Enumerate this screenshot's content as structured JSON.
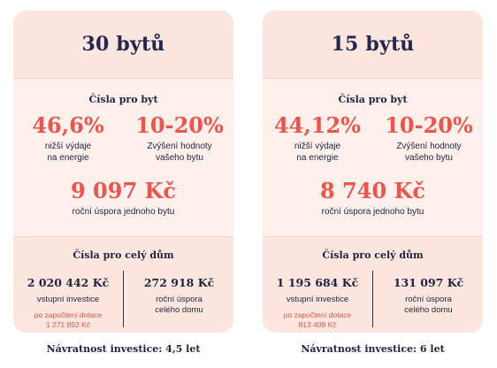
{
  "cards": [
    {
      "title": "30 bytů",
      "per_flat_title": "Čísla pro byt",
      "stat1_value": "46,6%",
      "stat1_caption_line1": "nižší výdaje",
      "stat1_caption_line2": "na energie",
      "stat2_value": "10-20%",
      "stat2_caption_line1": "Zvýšení hodnoty",
      "stat2_caption_line2": "vašeho bytu",
      "saving_value": "9 097 Kč",
      "saving_caption": "roční úspora jednoho bytu",
      "house_title": "Čísla pro celý dům",
      "investment_value": "2 020 442 Kč",
      "investment_caption": "vstupní investice",
      "subsidy_note_line1": "po započtení dotace",
      "subsidy_note_line2": "1 271 892 Kč",
      "house_saving_value": "272 918 Kč",
      "house_saving_caption_line1": "roční úspora",
      "house_saving_caption_line2": "celého domu",
      "payback": "Návratnost investice: 4,5 let"
    },
    {
      "title": "15 bytů",
      "per_flat_title": "Čísla pro byt",
      "stat1_value": "44,12%",
      "stat1_caption_line1": "nižší výdaje",
      "stat1_caption_line2": "na energie",
      "stat2_value": "10-20%",
      "stat2_caption_line1": "Zvýšení hodnoty",
      "stat2_caption_line2": "vašeho bytu",
      "saving_value": "8 740 Kč",
      "saving_caption": "roční úspora jednoho bytu",
      "house_title": "Čísla pro celý dům",
      "investment_value": "1 195 684 Kč",
      "investment_caption": "vstupní investice",
      "subsidy_note_line1": "po započtení dotace",
      "subsidy_note_line2": "813 409 Kč",
      "house_saving_value": "131 097 Kč",
      "house_saving_caption_line1": "roční úspora",
      "house_saving_caption_line2": "celého domu",
      "payback": "Návratnost investice: 6 let"
    }
  ],
  "colors": {
    "accent": "#f0524c",
    "navy": "#1f2340",
    "header_bg": "#fde6dd",
    "panel_bg": "#fef1ec"
  }
}
